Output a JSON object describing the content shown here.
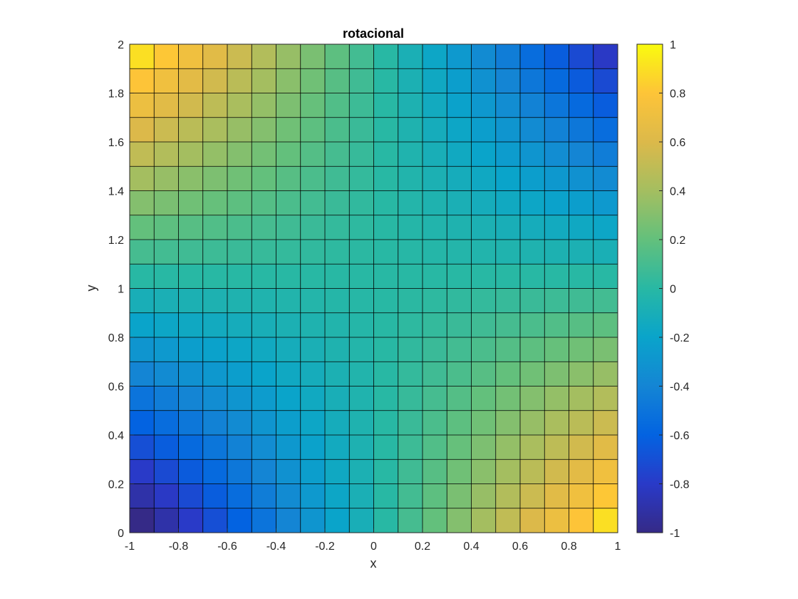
{
  "chart_data": {
    "type": "heatmap",
    "title": "rotacional",
    "xlabel": "x",
    "ylabel": "y",
    "xlim": [
      -1,
      1
    ],
    "ylim": [
      0,
      2
    ],
    "x_edges": [
      -1,
      -0.9,
      -0.8,
      -0.7,
      -0.6,
      -0.5,
      -0.4,
      -0.3,
      -0.2,
      -0.1,
      0,
      0.1,
      0.2,
      0.3,
      0.4,
      0.5,
      0.6,
      0.7,
      0.8,
      0.9,
      1
    ],
    "y_edges": [
      0,
      0.1,
      0.2,
      0.3,
      0.4,
      0.5,
      0.6,
      0.7,
      0.8,
      0.9,
      1,
      1.1,
      1.2,
      1.3,
      1.4,
      1.5,
      1.6,
      1.7,
      1.8,
      1.9,
      2
    ],
    "x_ticks": [
      "-1",
      "-0.8",
      "-0.6",
      "-0.4",
      "-0.2",
      "0",
      "0.2",
      "0.4",
      "0.6",
      "0.8",
      "1"
    ],
    "y_ticks": [
      "0",
      "0.2",
      "0.4",
      "0.6",
      "0.8",
      "1",
      "1.2",
      "1.4",
      "1.6",
      "1.8",
      "2"
    ],
    "value_function": "x*(1-y)",
    "colorbar": {
      "range": [
        -1,
        1
      ],
      "ticks": [
        "-1",
        "-0.8",
        "-0.6",
        "-0.4",
        "-0.2",
        "0",
        "0.2",
        "0.4",
        "0.6",
        "0.8",
        "1"
      ]
    },
    "colormap": "parula",
    "grid_lines": true
  }
}
